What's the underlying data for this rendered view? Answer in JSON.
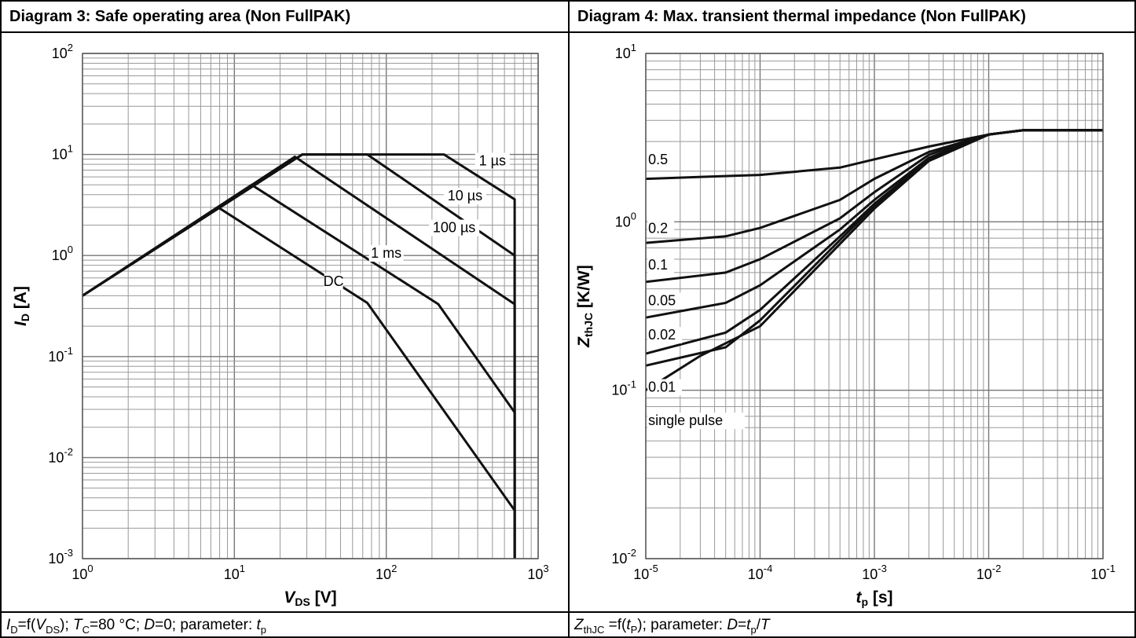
{
  "panels": {
    "left": {
      "title": "Diagram 3: Safe operating area (Non FullPAK)",
      "footer": {
        "id_sym": "I",
        "id_sub": "D",
        "eq1": "=f(",
        "vds_sym": "V",
        "vds_sub": "DS",
        "eq2": "); ",
        "tc_sym": "T",
        "tc_sub": "C",
        "eq3": "=80 °C; ",
        "d_sym": "D",
        "eq4": "=0; parameter: ",
        "tp_sym": "t",
        "tp_sub": "p"
      }
    },
    "right": {
      "title": "Diagram 4: Max. transient thermal impedance (Non FullPAK)",
      "footer": {
        "z_sym": "Z",
        "z_sub": "thJC",
        "eq1": " =f(",
        "tp_sym": "t",
        "tp_sub": "P",
        "eq2": "); parameter: ",
        "d_sym": "D",
        "eq3": "=",
        "tp2_sym": "t",
        "tp2_sub": "p",
        "slash": "/",
        "t_sym": "T"
      }
    }
  },
  "chart_data": [
    {
      "type": "line",
      "title": "Diagram 3: Safe operating area (Non FullPAK)",
      "x_scale": "log",
      "y_scale": "log",
      "xlim": [
        1,
        1000
      ],
      "ylim": [
        0.001,
        100
      ],
      "xlabel": {
        "sym": "V",
        "sub": "DS",
        "unit": " [V]"
      },
      "ylabel": {
        "sym": "I",
        "sub": "D",
        "unit": " [A]"
      },
      "x_ticks": [
        {
          "base": "10",
          "exp": "0"
        },
        {
          "base": "10",
          "exp": "1"
        },
        {
          "base": "10",
          "exp": "2"
        },
        {
          "base": "10",
          "exp": "3"
        }
      ],
      "y_ticks": [
        {
          "base": "10",
          "exp": "-3"
        },
        {
          "base": "10",
          "exp": "-2"
        },
        {
          "base": "10",
          "exp": "-1"
        },
        {
          "base": "10",
          "exp": "0"
        },
        {
          "base": "10",
          "exp": "1"
        },
        {
          "base": "10",
          "exp": "2"
        }
      ],
      "grid": true,
      "series": [
        {
          "name": "1 µs",
          "label_at": [
            500,
            7.8
          ],
          "points": [
            [
              1,
              0.4
            ],
            [
              28,
              10
            ],
            [
              240,
              10
            ],
            [
              700,
              3.6
            ],
            [
              700,
              0.001
            ]
          ]
        },
        {
          "name": "10 µs",
          "label_at": [
            330,
            3.5
          ],
          "points": [
            [
              1,
              0.4
            ],
            [
              28,
              10
            ],
            [
              75,
              10
            ],
            [
              700,
              1.0
            ],
            [
              700,
              0.001
            ]
          ]
        },
        {
          "name": "100 µs",
          "label_at": [
            280,
            1.7
          ],
          "points": [
            [
              1,
              0.4
            ],
            [
              25,
              9.5
            ],
            [
              700,
              0.33
            ],
            [
              700,
              0.001
            ]
          ]
        },
        {
          "name": "1 ms",
          "label_at": [
            100,
            0.95
          ],
          "points": [
            [
              1,
              0.4
            ],
            [
              13,
              5
            ],
            [
              220,
              0.33
            ],
            [
              700,
              0.028
            ],
            [
              700,
              0.001
            ]
          ]
        },
        {
          "name": "DC",
          "label_at": [
            45,
            0.5
          ],
          "points": [
            [
              1,
              0.4
            ],
            [
              7.8,
              3
            ],
            [
              75,
              0.34
            ],
            [
              700,
              0.003
            ],
            [
              700,
              0.001
            ]
          ]
        }
      ]
    },
    {
      "type": "line",
      "title": "Diagram 4: Max. transient thermal impedance (Non FullPAK)",
      "x_scale": "log",
      "y_scale": "log",
      "xlim": [
        1e-05,
        0.1
      ],
      "ylim": [
        0.01,
        10
      ],
      "xlabel": {
        "sym": "t",
        "sub": "p",
        "unit": " [s]"
      },
      "ylabel": {
        "sym": "Z",
        "sub": "thJC",
        "unit": " [K/W]"
      },
      "x_ticks": [
        {
          "base": "10",
          "exp": "-5"
        },
        {
          "base": "10",
          "exp": "-4"
        },
        {
          "base": "10",
          "exp": "-3"
        },
        {
          "base": "10",
          "exp": "-2"
        },
        {
          "base": "10",
          "exp": "-1"
        }
      ],
      "y_ticks": [
        {
          "base": "10",
          "exp": "-2"
        },
        {
          "base": "10",
          "exp": "-1"
        },
        {
          "base": "10",
          "exp": "0"
        },
        {
          "base": "10",
          "exp": "1"
        }
      ],
      "grid": true,
      "series": [
        {
          "name": "0.5",
          "label_at": [
            1.05e-05,
            2.2
          ],
          "points": [
            [
              1e-05,
              1.8
            ],
            [
              0.0001,
              1.9
            ],
            [
              0.0005,
              2.1
            ],
            [
              0.001,
              2.35
            ],
            [
              0.003,
              2.8
            ],
            [
              0.01,
              3.3
            ],
            [
              0.02,
              3.5
            ],
            [
              0.1,
              3.5
            ]
          ]
        },
        {
          "name": "0.2",
          "label_at": [
            1.05e-05,
            0.86
          ],
          "points": [
            [
              1e-05,
              0.75
            ],
            [
              5e-05,
              0.82
            ],
            [
              0.0001,
              0.92
            ],
            [
              0.0005,
              1.35
            ],
            [
              0.001,
              1.8
            ],
            [
              0.003,
              2.6
            ],
            [
              0.01,
              3.3
            ],
            [
              0.02,
              3.5
            ],
            [
              0.1,
              3.5
            ]
          ]
        },
        {
          "name": "0.1",
          "label_at": [
            1.05e-05,
            0.52
          ],
          "points": [
            [
              1e-05,
              0.44
            ],
            [
              5e-05,
              0.5
            ],
            [
              0.0001,
              0.6
            ],
            [
              0.0005,
              1.05
            ],
            [
              0.001,
              1.5
            ],
            [
              0.003,
              2.5
            ],
            [
              0.01,
              3.3
            ],
            [
              0.02,
              3.5
            ],
            [
              0.1,
              3.5
            ]
          ]
        },
        {
          "name": "0.05",
          "label_at": [
            1.05e-05,
            0.32
          ],
          "points": [
            [
              1e-05,
              0.27
            ],
            [
              5e-05,
              0.33
            ],
            [
              0.0001,
              0.42
            ],
            [
              0.0005,
              0.9
            ],
            [
              0.001,
              1.35
            ],
            [
              0.003,
              2.4
            ],
            [
              0.01,
              3.3
            ],
            [
              0.02,
              3.5
            ],
            [
              0.1,
              3.5
            ]
          ]
        },
        {
          "name": "0.02",
          "label_at": [
            1.05e-05,
            0.2
          ],
          "points": [
            [
              1e-05,
              0.165
            ],
            [
              5e-05,
              0.22
            ],
            [
              0.0001,
              0.3
            ],
            [
              0.0005,
              0.82
            ],
            [
              0.001,
              1.28
            ],
            [
              0.003,
              2.35
            ],
            [
              0.01,
              3.3
            ],
            [
              0.02,
              3.5
            ],
            [
              0.1,
              3.5
            ]
          ]
        },
        {
          "name": "0.01",
          "label_at": [
            1.05e-05,
            0.098
          ],
          "points": [
            [
              1e-05,
              0.14
            ],
            [
              5e-05,
              0.18
            ],
            [
              0.0001,
              0.26
            ],
            [
              0.0005,
              0.78
            ],
            [
              0.001,
              1.25
            ],
            [
              0.003,
              2.3
            ],
            [
              0.01,
              3.3
            ],
            [
              0.02,
              3.5
            ],
            [
              0.1,
              3.5
            ]
          ]
        },
        {
          "name": "single pulse",
          "label_at": [
            1.05e-05,
            0.062
          ],
          "points": [
            [
              1e-05,
              0.1
            ],
            [
              3e-05,
              0.16
            ],
            [
              0.0001,
              0.24
            ],
            [
              0.0005,
              0.74
            ],
            [
              0.001,
              1.2
            ],
            [
              0.003,
              2.3
            ],
            [
              0.01,
              3.3
            ],
            [
              0.02,
              3.5
            ],
            [
              0.1,
              3.5
            ]
          ]
        }
      ]
    }
  ]
}
